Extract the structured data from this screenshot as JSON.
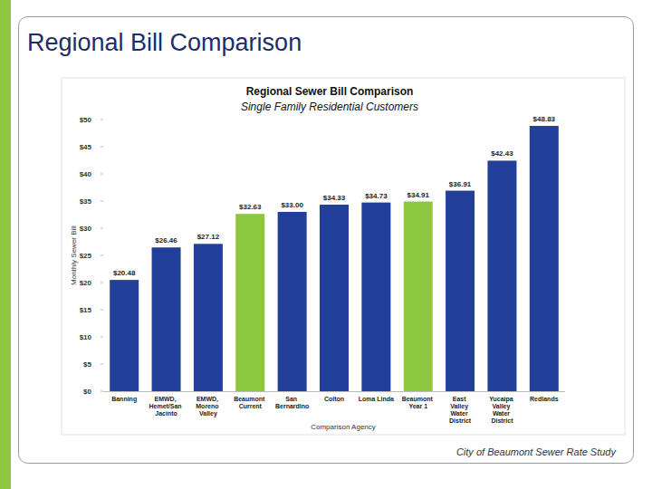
{
  "title": "Regional Bill Comparison",
  "footer": "City of Beaumont Sewer Rate Study",
  "chart_data": {
    "type": "bar",
    "title": "Regional Sewer Bill Comparison",
    "subtitle": "Single Family Residential Customers",
    "x_label": "Comparison Agency",
    "y_label": "Monthly Sewer Bill",
    "categories": [
      "Banning",
      "EMWD, Hemet/San Jacinto",
      "EMWD, Moreno Valley",
      "Beaumont Current",
      "San Bernardino",
      "Colton",
      "Loma Linda",
      "Beaumont Year 1",
      "East Valley Water District",
      "Yucaipa Valley Water District",
      "Redlands"
    ],
    "values": [
      20.48,
      26.46,
      27.12,
      32.63,
      33.0,
      34.33,
      34.73,
      34.91,
      36.91,
      42.43,
      48.83
    ],
    "value_labels": [
      "$20.48",
      "$26.46",
      "$27.12",
      "$32.63",
      "$33.00",
      "$34.33",
      "$34.73",
      "$34.91",
      "$36.91",
      "$42.43",
      "$48.83"
    ],
    "colors": [
      "#22409a",
      "#22409a",
      "#22409a",
      "#8dc63f",
      "#22409a",
      "#22409a",
      "#22409a",
      "#8dc63f",
      "#22409a",
      "#22409a",
      "#22409a"
    ],
    "ylim": [
      0,
      50
    ],
    "yticks": [
      {
        "value": 0,
        "label": "$0"
      },
      {
        "value": 5,
        "label": "$5"
      },
      {
        "value": 10,
        "label": "$10"
      },
      {
        "value": 15,
        "label": "$15"
      },
      {
        "value": 20,
        "label": "$20"
      },
      {
        "value": 25,
        "label": "$25"
      },
      {
        "value": 30,
        "label": "$30"
      },
      {
        "value": 35,
        "label": "$35"
      },
      {
        "value": 40,
        "label": "$40"
      },
      {
        "value": 45,
        "label": "$45"
      },
      {
        "value": 50,
        "label": "$50"
      }
    ],
    "grid": false,
    "data_labels": true
  }
}
